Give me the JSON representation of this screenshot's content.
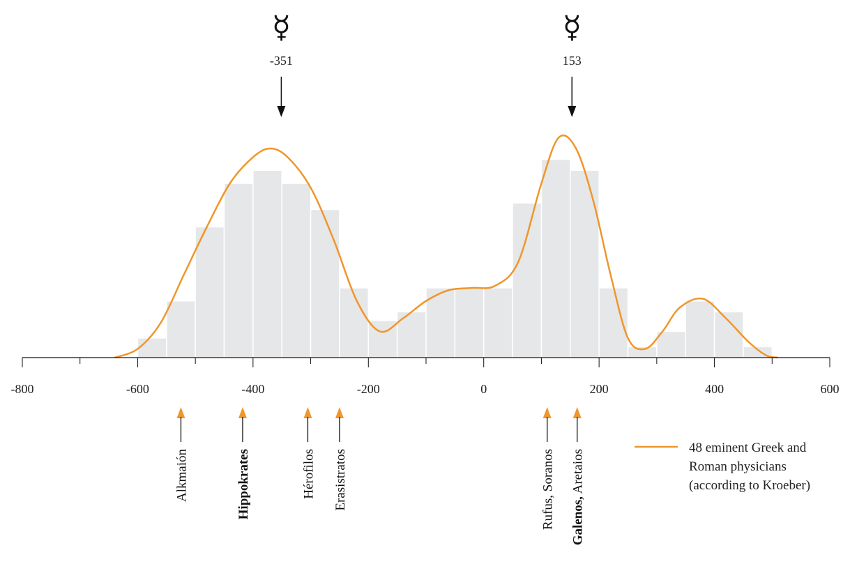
{
  "chart_data": {
    "type": "bar",
    "title": "",
    "xlabel": "",
    "ylabel": "",
    "xlim": [
      -800,
      600
    ],
    "x_ticks": [
      -800,
      -600,
      -400,
      -200,
      0,
      200,
      400,
      600
    ],
    "x_tick_labels": [
      "-800",
      "-600",
      "-400",
      "-200",
      "0",
      "200",
      "400",
      "600"
    ],
    "bin_width": 50,
    "histogram": {
      "bin_starts": [
        -600,
        -550,
        -500,
        -450,
        -400,
        -350,
        -300,
        -250,
        -200,
        -150,
        -100,
        -50,
        0,
        50,
        100,
        150,
        200,
        250,
        300,
        350,
        400,
        450
      ],
      "values": [
        0.45,
        1.3,
        3.0,
        4.0,
        4.3,
        4.0,
        3.4,
        1.6,
        0.85,
        1.05,
        1.6,
        1.6,
        1.6,
        3.55,
        4.55,
        4.3,
        1.6,
        0.25,
        0.6,
        1.3,
        1.05,
        0.25
      ],
      "color": "#e6e7e8"
    },
    "series": [
      {
        "name": "48 eminent Greek and Roman physicians (according to Kroeber)",
        "color": "#f0962b",
        "x": [
          -640,
          -600,
          -560,
          -520,
          -480,
          -440,
          -400,
          -370,
          -340,
          -300,
          -260,
          -220,
          -180,
          -140,
          -100,
          -60,
          -20,
          20,
          60,
          100,
          130,
          160,
          190,
          220,
          250,
          280,
          310,
          340,
          380,
          420,
          460,
          490,
          510
        ],
        "y": [
          0,
          0.2,
          0.8,
          1.9,
          3.0,
          4.0,
          4.6,
          4.8,
          4.6,
          3.9,
          2.7,
          1.3,
          0.6,
          0.9,
          1.3,
          1.55,
          1.6,
          1.65,
          2.2,
          4.0,
          5.05,
          4.8,
          3.6,
          1.9,
          0.45,
          0.2,
          0.6,
          1.15,
          1.35,
          0.9,
          0.35,
          0.05,
          0
        ]
      }
    ],
    "peaks": [
      {
        "label": "-351",
        "x": -351,
        "symbol": "☿"
      },
      {
        "label": "153",
        "x": 153,
        "symbol": "☿"
      }
    ],
    "annotations": [
      {
        "label": "Alkmaión",
        "bold_part": "",
        "rest": "Alkmaión",
        "x": -525
      },
      {
        "label": "Hippokrates",
        "bold_part": "Hippokrates",
        "rest": "",
        "x": -418
      },
      {
        "label": "Hérofilos",
        "bold_part": "",
        "rest": "Hérofilos",
        "x": -305
      },
      {
        "label": "Erasistratos",
        "bold_part": "",
        "rest": "Erasistratos",
        "x": -250
      },
      {
        "label": "Rufus, Soranos",
        "bold_part": "",
        "rest": "Rufus, Soranos",
        "x": 110
      },
      {
        "label": "Galenos, Aretaios",
        "bold_part": "Galenos,",
        "rest": " Aretaios",
        "x": 162
      }
    ],
    "annotation_arrow_color": "#f0962b",
    "legend": {
      "position": "right",
      "lines": [
        "48 eminent Greek and",
        "Roman physicians",
        "(according to Kroeber)"
      ]
    }
  }
}
